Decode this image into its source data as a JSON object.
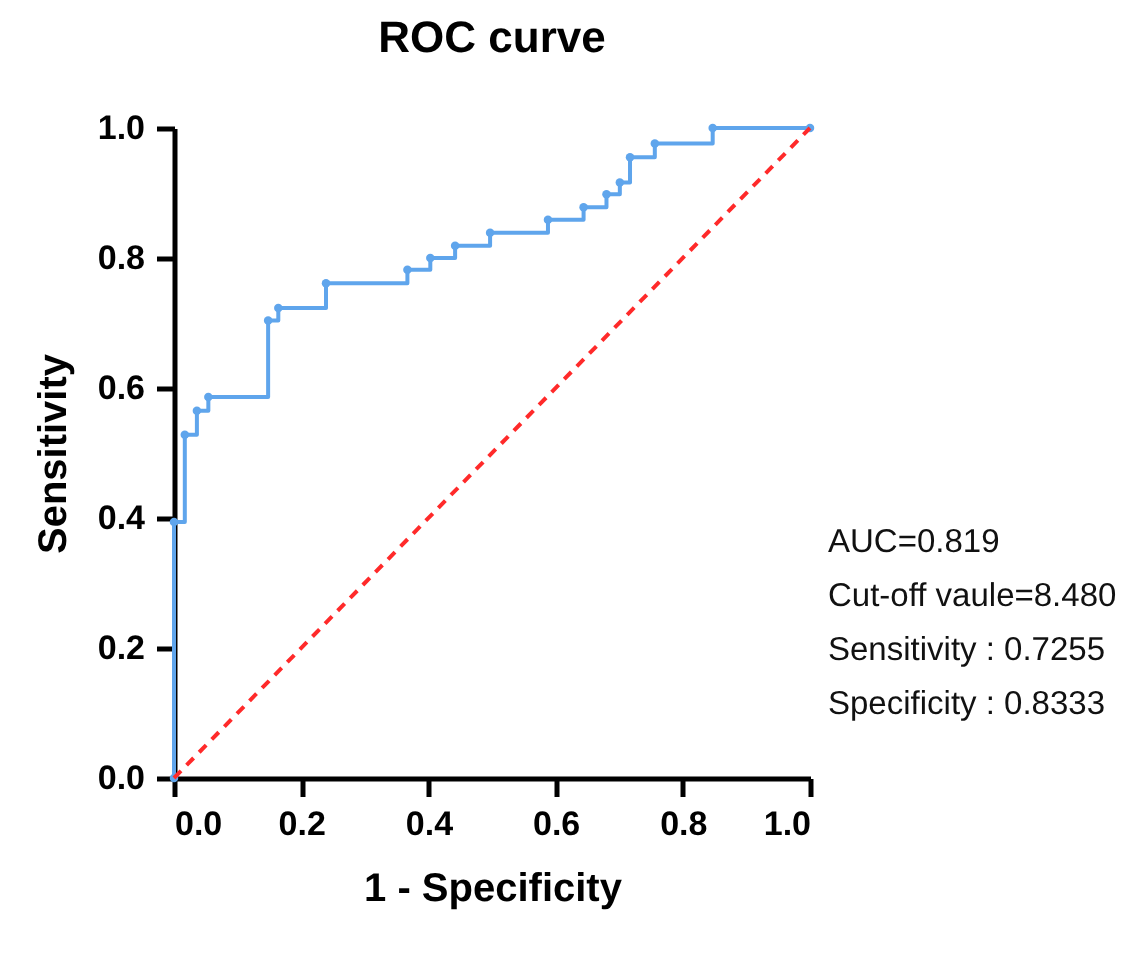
{
  "chart_data": {
    "type": "step",
    "title": "ROC curve",
    "xlabel": "1 - Specificity",
    "ylabel": "Sensitivity",
    "xlim": [
      0,
      1
    ],
    "ylim": [
      0,
      1
    ],
    "xticks": [
      {
        "value": 0,
        "label": "0.0"
      },
      {
        "value": 0.2,
        "label": "0.2"
      },
      {
        "value": 0.4,
        "label": "0.4"
      },
      {
        "value": 0.6,
        "label": "0.6"
      },
      {
        "value": 0.8,
        "label": "0.8"
      },
      {
        "value": 1,
        "label": "1.0"
      }
    ],
    "yticks": [
      {
        "value": 0,
        "label": "0.0"
      },
      {
        "value": 0.2,
        "label": "0.2"
      },
      {
        "value": 0.4,
        "label": "0.4"
      },
      {
        "value": 0.6,
        "label": "0.6"
      },
      {
        "value": 0.8,
        "label": "0.8"
      },
      {
        "value": 1,
        "label": "1.0"
      }
    ],
    "grid": false,
    "marker": "circle",
    "series": [
      {
        "type": "step",
        "color": "#5fa5ec",
        "line_style": "solid",
        "x": [
          0,
          0,
          0.017,
          0.036,
          0.054,
          0.148,
          0.164,
          0.239,
          0.367,
          0.403,
          0.442,
          0.497,
          0.588,
          0.644,
          0.68,
          0.701,
          0.717,
          0.756,
          0.847,
          1.0
        ],
        "values": [
          0,
          0.394,
          0.528,
          0.565,
          0.586,
          0.704,
          0.723,
          0.761,
          0.782,
          0.8,
          0.819,
          0.839,
          0.859,
          0.878,
          0.898,
          0.916,
          0.955,
          0.976,
          1.0,
          1.0
        ]
      },
      {
        "type": "line",
        "color": "#ff2a2a",
        "line_style": "dashed",
        "marker": "none",
        "x": [
          0,
          1
        ],
        "values": [
          0,
          1
        ]
      }
    ],
    "annotations": [
      "AUC=0.819",
      "Cut-off vaule=8.480",
      "Sensitivity : 0.7255",
      "Specificity : 0.8333"
    ]
  }
}
